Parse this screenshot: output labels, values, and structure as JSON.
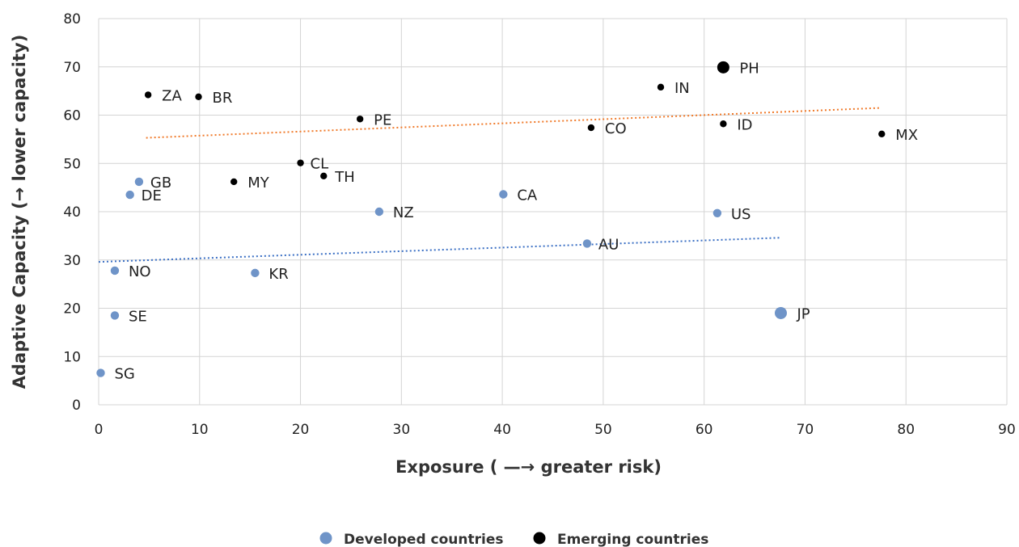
{
  "chart_data": {
    "type": "scatter",
    "xlabel": "Exposure ( —→ greater risk)",
    "ylabel": "Adaptive Capacity (→ lower capacity)",
    "xlim": [
      0,
      90
    ],
    "ylim": [
      0,
      80
    ],
    "xticks": [
      0,
      10,
      20,
      30,
      40,
      50,
      60,
      70,
      80,
      90
    ],
    "yticks": [
      0,
      10,
      20,
      30,
      40,
      50,
      60,
      70,
      80
    ],
    "grid": true,
    "legend_position": "bottom-center",
    "series": [
      {
        "name": "Developed countries",
        "color": "#6f94c8",
        "trendline_color": "#3a6fc4",
        "trendline": [
          [
            0,
            29.6
          ],
          [
            67.5,
            34.6
          ]
        ],
        "points": [
          {
            "label": "SG",
            "x": 0.2,
            "y": 6.6,
            "size": "normal"
          },
          {
            "label": "SE",
            "x": 1.6,
            "y": 18.5,
            "size": "normal"
          },
          {
            "label": "NO",
            "x": 1.6,
            "y": 27.8,
            "size": "normal"
          },
          {
            "label": "DE",
            "x": 3.1,
            "y": 43.5,
            "size": "normal"
          },
          {
            "label": "GB",
            "x": 4.0,
            "y": 46.2,
            "size": "normal"
          },
          {
            "label": "KR",
            "x": 15.5,
            "y": 27.3,
            "size": "normal"
          },
          {
            "label": "NZ",
            "x": 27.8,
            "y": 40.0,
            "size": "normal"
          },
          {
            "label": "CA",
            "x": 40.1,
            "y": 43.6,
            "size": "normal"
          },
          {
            "label": "AU",
            "x": 48.4,
            "y": 33.4,
            "size": "normal"
          },
          {
            "label": "US",
            "x": 61.3,
            "y": 39.7,
            "size": "normal"
          },
          {
            "label": "JP",
            "x": 67.6,
            "y": 19.0,
            "size": "large"
          }
        ]
      },
      {
        "name": "Emerging countries",
        "color": "#000000",
        "trendline_color": "#f07a2a",
        "trendline": [
          [
            4.7,
            55.3
          ],
          [
            77.5,
            61.5
          ]
        ],
        "points": [
          {
            "label": "ZA",
            "x": 4.9,
            "y": 64.2,
            "size": "normal"
          },
          {
            "label": "BR",
            "x": 9.9,
            "y": 63.8,
            "size": "normal"
          },
          {
            "label": "MY",
            "x": 13.4,
            "y": 46.2,
            "size": "normal"
          },
          {
            "label": "CL",
            "x": 20.0,
            "y": 50.1,
            "size": "normal"
          },
          {
            "label": "TH",
            "x": 22.3,
            "y": 47.4,
            "size": "normal"
          },
          {
            "label": "PE",
            "x": 25.9,
            "y": 59.2,
            "size": "normal"
          },
          {
            "label": "CO",
            "x": 48.8,
            "y": 57.4,
            "size": "normal"
          },
          {
            "label": "IN",
            "x": 55.7,
            "y": 65.8,
            "size": "normal"
          },
          {
            "label": "PH",
            "x": 61.9,
            "y": 69.9,
            "size": "large"
          },
          {
            "label": "ID",
            "x": 61.9,
            "y": 58.2,
            "size": "normal"
          },
          {
            "label": "MX",
            "x": 77.6,
            "y": 56.1,
            "size": "normal"
          }
        ]
      }
    ]
  }
}
